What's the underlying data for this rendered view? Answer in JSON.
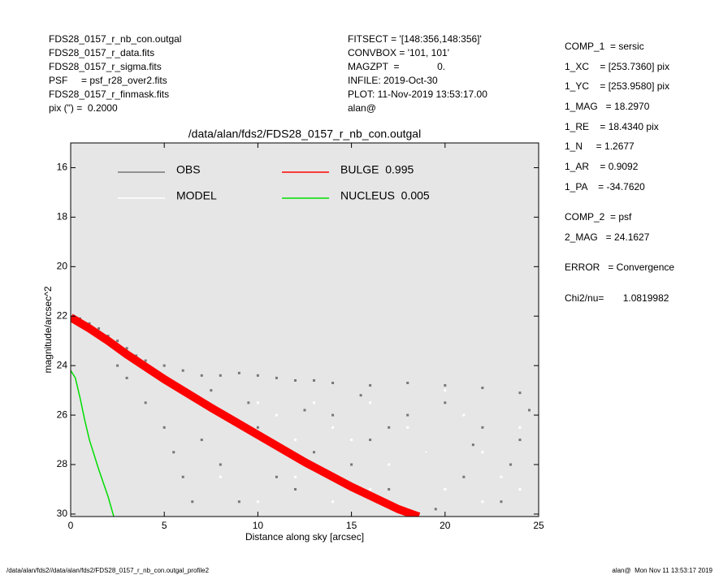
{
  "header": {
    "left": [
      "FDS28_0157_r_nb_con.outgal",
      "FDS28_0157_r_data.fits",
      "FDS28_0157_r_sigma.fits",
      "PSF     = psf_r28_over2.fits",
      "FDS28_0157_r_finmask.fits",
      "pix (\") =  0.2000"
    ],
    "middle": [
      "FITSECT = '[148:356,148:356]'",
      "CONVBOX = '101, 101'",
      "MAGZPT  =              0.",
      "INFILE: 2019-Oct-30",
      "PLOT: 11-Nov-2019 13:53:17.00",
      "alan@"
    ],
    "right": [
      "COMP_1  = sersic",
      "1_XC    = [253.7360] pix",
      "1_YC    = [253.9580] pix",
      "1_MAG   = 18.2970",
      "1_RE    = 18.4340 pix",
      "1_N     = 1.2677",
      "1_AR    = 0.9092",
      "1_PA    = -34.7620",
      "COMP_2  = psf",
      "2_MAG   = 24.1627",
      "ERROR   = Convergence",
      "Chi2/nu=       1.0819982"
    ]
  },
  "footer": {
    "left": "/data/alan/fds2//data/alan/fds2/FDS28_0157_r_nb_con.outgal_profile2",
    "right": "alan@  Mon Nov 11 13:53:17 2019"
  },
  "chart_data": {
    "type": "scatter",
    "title": "/data/alan/fds2/FDS28_0157_r_nb_con.outgal",
    "x_label": "Distance along sky [arcsec]",
    "y_label": "magnitude/arcsec^2",
    "xlim": [
      0,
      25
    ],
    "xticks": [
      0,
      5,
      10,
      15,
      20,
      25
    ],
    "ylim": [
      30.1,
      15
    ],
    "yticks": [
      16,
      18,
      20,
      22,
      24,
      26,
      28,
      30
    ],
    "background": "#e6e6e6",
    "series": [
      {
        "name": "OBS",
        "color": "#777777",
        "mode": "markers",
        "x": [
          0.5,
          1,
          1.5,
          2,
          2.5,
          3,
          3.5,
          4,
          5,
          6,
          7,
          8,
          9,
          10,
          11,
          12,
          13,
          14,
          16,
          18,
          20,
          22,
          24,
          5,
          5.5,
          6,
          6.5,
          7,
          8,
          9,
          10,
          11,
          12,
          13,
          14,
          15,
          16,
          17,
          18,
          19,
          20,
          21,
          22,
          23,
          24,
          24.5,
          3,
          4,
          2.5,
          7.5,
          9.5,
          12.5,
          15.5,
          17,
          19.5,
          21.5,
          23.5
        ],
        "values": [
          22.1,
          22.3,
          22.5,
          22.8,
          23.0,
          23.3,
          23.6,
          23.8,
          24.0,
          24.2,
          24.4,
          24.4,
          24.3,
          24.4,
          24.5,
          24.6,
          24.6,
          24.7,
          24.8,
          24.7,
          24.8,
          24.9,
          25.1,
          26.5,
          27.5,
          28.5,
          29.5,
          27,
          28,
          29.5,
          26.5,
          28.5,
          29,
          27.5,
          26,
          28,
          27,
          29,
          26,
          27.5,
          25.5,
          28.5,
          26.5,
          29.5,
          27,
          25.8,
          24.5,
          25.5,
          24,
          25,
          25.5,
          25.8,
          25.2,
          26.5,
          29.8,
          27.2,
          28
        ]
      },
      {
        "name": "MODEL",
        "color": "#ffffff",
        "mode": "markers",
        "x": [
          1,
          2,
          3,
          4,
          5,
          6,
          7,
          8,
          9,
          10,
          11,
          12,
          13,
          14,
          15,
          16,
          17,
          18,
          19,
          20,
          21,
          22,
          23,
          24,
          8,
          10,
          12,
          14,
          16,
          18,
          20,
          22,
          24
        ],
        "values": [
          22.4,
          23.0,
          23.5,
          24.0,
          24.5,
          25.0,
          25.6,
          26.0,
          26.4,
          25.5,
          26,
          27,
          25.5,
          26.5,
          27,
          25.5,
          28,
          26.5,
          27.5,
          29,
          26,
          27.5,
          28.5,
          26.5,
          28.5,
          29.5,
          28.5,
          29.5,
          29,
          29.8,
          25,
          29.5,
          29
        ]
      },
      {
        "name": "BULGE  0.995",
        "color": "#ff0000",
        "mode": "band",
        "x": [
          0,
          1,
          2,
          3,
          4,
          5,
          7.5,
          10,
          12.5,
          15,
          17.5,
          18.6
        ],
        "values": [
          22.05,
          22.5,
          23.0,
          23.55,
          24.05,
          24.55,
          25.7,
          26.8,
          27.9,
          28.9,
          29.8,
          30.1
        ]
      },
      {
        "name": "NUCLEUS  0.005",
        "color": "#00dd00",
        "mode": "line",
        "x": [
          0,
          0.25,
          0.5,
          0.75,
          1,
          1.5,
          2,
          2.3
        ],
        "values": [
          24.2,
          24.5,
          25.3,
          26.2,
          27.0,
          28.2,
          29.3,
          30.1
        ]
      }
    ]
  }
}
